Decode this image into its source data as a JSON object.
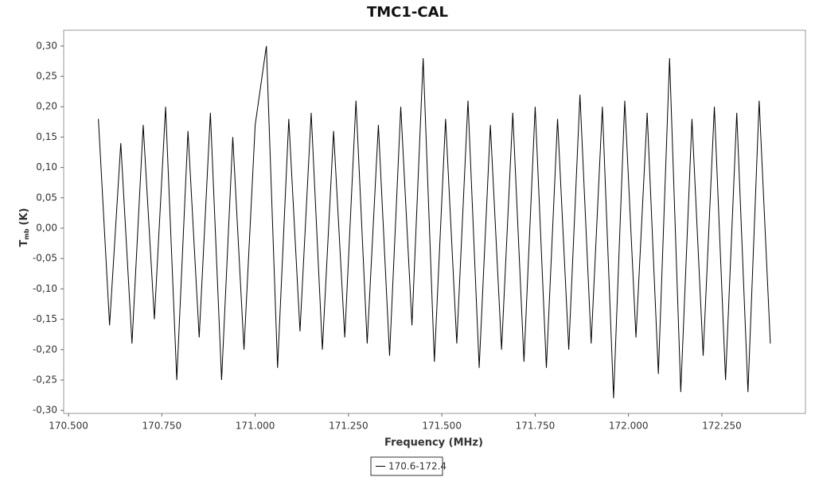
{
  "chart_data": {
    "type": "line",
    "title": "TMC1-CAL",
    "x_label": "Frequency (MHz)",
    "y_label": "T",
    "y_label_sub": "mb",
    "y_label_unit": "(K)",
    "grid": false,
    "legend": "bottom",
    "xlim": [
      170.487,
      172.474
    ],
    "ylim": [
      -0.305,
      0.326
    ],
    "xticks": [
      {
        "value": 170.5,
        "label": "170.500"
      },
      {
        "value": 170.75,
        "label": "170.750"
      },
      {
        "value": 171.0,
        "label": "171.000"
      },
      {
        "value": 171.25,
        "label": "171.250"
      },
      {
        "value": 171.5,
        "label": "171.500"
      },
      {
        "value": 171.75,
        "label": "171.750"
      },
      {
        "value": 172.0,
        "label": "172.000"
      },
      {
        "value": 172.25,
        "label": "172.250"
      }
    ],
    "yticks": [
      {
        "value": 0.3,
        "label": "0,30"
      },
      {
        "value": 0.25,
        "label": "0,25"
      },
      {
        "value": 0.2,
        "label": "0,20"
      },
      {
        "value": 0.15,
        "label": "0,15"
      },
      {
        "value": 0.1,
        "label": "0,10"
      },
      {
        "value": 0.05,
        "label": "0,05"
      },
      {
        "value": 0,
        "label": "0,00"
      },
      {
        "value": -0.05,
        "label": "-0,05"
      },
      {
        "value": -0.1,
        "label": "-0,10"
      },
      {
        "value": -0.15,
        "label": "-0,15"
      },
      {
        "value": -0.2,
        "label": "-0,20"
      },
      {
        "value": -0.25,
        "label": "-0,25"
      },
      {
        "value": -0.3,
        "label": "-0,30"
      }
    ],
    "x": [
      170.58,
      170.61,
      170.64,
      170.67,
      170.7,
      170.73,
      170.76,
      170.79,
      170.82,
      170.85,
      170.88,
      170.91,
      170.94,
      170.97,
      171.0,
      171.03,
      171.06,
      171.09,
      171.12,
      171.15,
      171.18,
      171.21,
      171.24,
      171.27,
      171.3,
      171.33,
      171.36,
      171.39,
      171.42,
      171.45,
      171.48,
      171.51,
      171.54,
      171.57,
      171.6,
      171.63,
      171.66,
      171.69,
      171.72,
      171.75,
      171.78,
      171.81,
      171.84,
      171.87,
      171.9,
      171.93,
      171.96,
      171.99,
      172.02,
      172.05,
      172.08,
      172.11,
      172.14,
      172.17,
      172.2,
      172.23,
      172.26,
      172.29,
      172.32,
      172.35,
      172.38
    ],
    "series": [
      {
        "name": "170.6-172.4",
        "color": "#000000",
        "values": [
          0.18,
          -0.16,
          0.14,
          -0.19,
          0.17,
          -0.15,
          0.2,
          -0.25,
          0.16,
          -0.18,
          0.19,
          -0.25,
          0.15,
          -0.2,
          0.17,
          0.3,
          -0.23,
          0.18,
          -0.17,
          0.19,
          -0.2,
          0.16,
          -0.18,
          0.21,
          -0.19,
          0.17,
          -0.21,
          0.2,
          -0.16,
          0.28,
          -0.22,
          0.18,
          -0.19,
          0.21,
          -0.23,
          0.17,
          -0.2,
          0.19,
          -0.22,
          0.2,
          -0.23,
          0.18,
          -0.2,
          0.22,
          -0.19,
          0.2,
          -0.28,
          0.21,
          -0.18,
          0.19,
          -0.24,
          0.28,
          -0.27,
          0.18,
          -0.21,
          0.2,
          -0.25,
          0.19,
          -0.27,
          0.21,
          -0.19
        ]
      }
    ]
  }
}
